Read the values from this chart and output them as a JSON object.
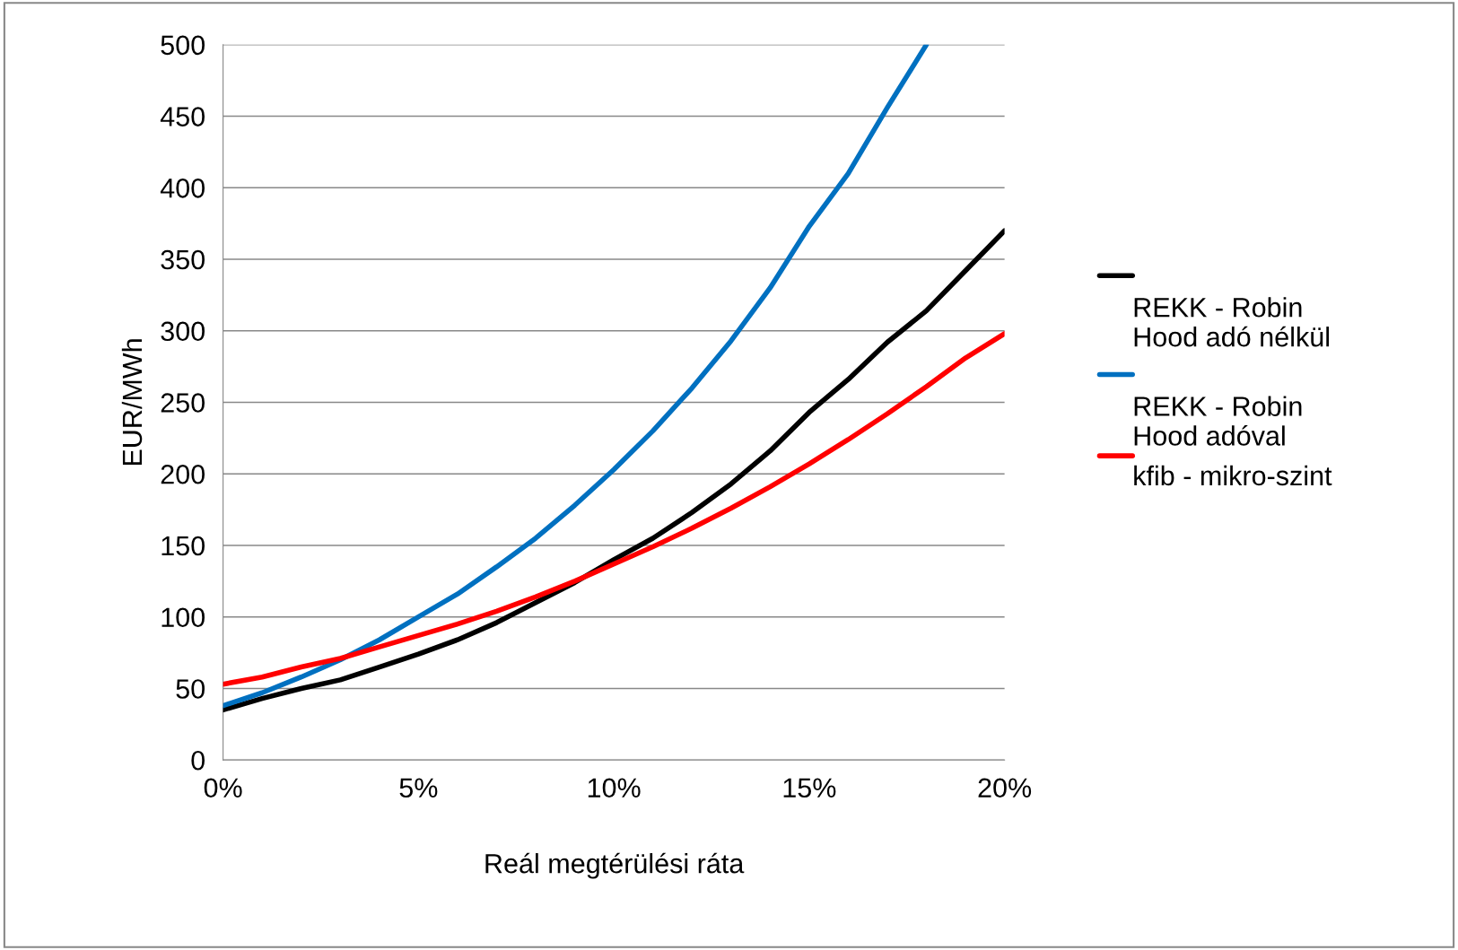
{
  "chart_data": {
    "type": "line",
    "xlabel": "Reál megtérülési ráta",
    "ylabel": "EUR/MWh",
    "x": [
      0,
      1,
      2,
      3,
      4,
      5,
      6,
      7,
      8,
      9,
      10,
      11,
      12,
      13,
      14,
      15,
      16,
      17,
      18,
      19,
      20
    ],
    "xlim": [
      0,
      20
    ],
    "xticks": [
      {
        "value": 0,
        "label": "0%"
      },
      {
        "value": 5,
        "label": "5%"
      },
      {
        "value": 10,
        "label": "10%"
      },
      {
        "value": 15,
        "label": "15%"
      },
      {
        "value": 20,
        "label": "20%"
      }
    ],
    "ylim": [
      0,
      500
    ],
    "yticks": [
      0,
      50,
      100,
      150,
      200,
      250,
      300,
      350,
      400,
      450,
      500
    ],
    "grid": "y",
    "legend": "right",
    "marker": "none",
    "line_style": "solid",
    "series": [
      {
        "name": "REKK - Robin Hood adó nélkül",
        "color": "#000000",
        "values": [
          35,
          43,
          50,
          56,
          65,
          74,
          84,
          96,
          110,
          124,
          140,
          155,
          173,
          193,
          216,
          243,
          266,
          292,
          314,
          342,
          370
        ]
      },
      {
        "name": "REKK - Robin Hood adóval",
        "color": "#0070c0",
        "values": [
          38,
          47,
          58,
          70,
          84,
          100,
          116,
          135,
          155,
          178,
          203,
          230,
          260,
          293,
          330,
          373,
          410,
          456,
          500,
          null,
          null
        ]
      },
      {
        "name": "kfib - mikro-szint",
        "color": "#ff0000",
        "values": [
          53,
          58,
          65,
          71,
          79,
          87,
          95,
          104,
          114,
          125,
          137,
          149,
          162,
          176,
          191,
          207,
          224,
          242,
          261,
          281,
          298
        ]
      }
    ]
  }
}
